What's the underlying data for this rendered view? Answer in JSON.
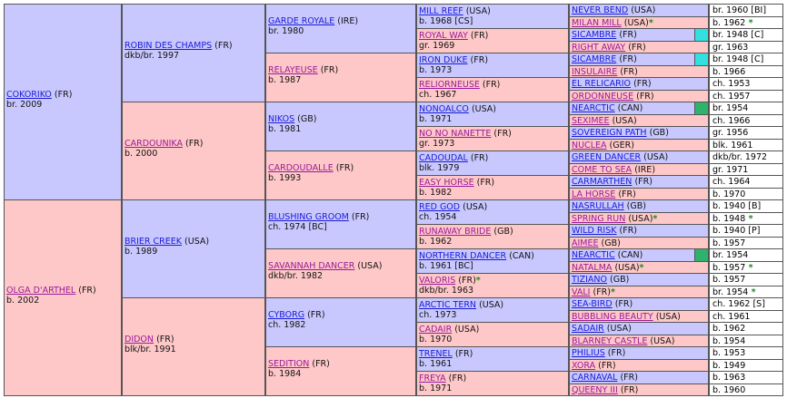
{
  "gen1": [
    {
      "name": "COKORIKO",
      "country": "(FR)",
      "info": "br. 2009",
      "sex": "m"
    },
    {
      "name": "OLGA D'ARTHEL",
      "country": "(FR)",
      "info": "b. 2002",
      "sex": "f"
    }
  ],
  "gen2": [
    {
      "name": "ROBIN DES CHAMPS",
      "country": "(FR)",
      "info": "dkb/br. 1997",
      "sex": "m"
    },
    {
      "name": "CARDOUNIKA",
      "country": "(FR)",
      "info": "b. 2000",
      "sex": "f"
    },
    {
      "name": "BRIER CREEK",
      "country": "(USA)",
      "info": "b. 1989",
      "sex": "m"
    },
    {
      "name": "DIDON",
      "country": "(FR)",
      "info": "blk/br. 1991",
      "sex": "f"
    }
  ],
  "gen3": [
    {
      "name": "GARDE ROYALE",
      "country": "(IRE)",
      "info": "br. 1980",
      "sex": "m"
    },
    {
      "name": "RELAYEUSE",
      "country": "(FR)",
      "info": "b. 1987",
      "sex": "f"
    },
    {
      "name": "NIKOS",
      "country": "(GB)",
      "info": "b. 1981",
      "sex": "m"
    },
    {
      "name": "CARDOUDALLE",
      "country": "(FR)",
      "info": "b. 1993",
      "sex": "f"
    },
    {
      "name": "BLUSHING GROOM",
      "country": "(FR)",
      "info": "ch. 1974 [BC]",
      "sex": "m"
    },
    {
      "name": "SAVANNAH DANCER",
      "country": "(USA)",
      "info": "dkb/br. 1982",
      "sex": "f"
    },
    {
      "name": "CYBORG",
      "country": "(FR)",
      "info": "ch. 1982",
      "sex": "m"
    },
    {
      "name": "SEDITION",
      "country": "(FR)",
      "info": "b. 1984",
      "sex": "f"
    }
  ],
  "gen4": [
    {
      "name": "MILL REEF",
      "country": "(USA)",
      "info": "b. 1968 [CS]",
      "sex": "m"
    },
    {
      "name": "ROYAL WAY",
      "country": "(FR)",
      "info": "gr. 1969",
      "sex": "f"
    },
    {
      "name": "IRON DUKE",
      "country": "(FR)",
      "info": "b. 1973",
      "sex": "m"
    },
    {
      "name": "RELIORNEUSE",
      "country": "(FR)",
      "info": "ch. 1967",
      "sex": "f"
    },
    {
      "name": "NONOALCO",
      "country": "(USA)",
      "info": "b. 1971",
      "sex": "m"
    },
    {
      "name": "NO NO NANETTE",
      "country": "(FR)",
      "info": "gr. 1973",
      "sex": "f"
    },
    {
      "name": "CADOUDAL",
      "country": "(FR)",
      "info": "blk. 1979",
      "sex": "m"
    },
    {
      "name": "EASY HORSE",
      "country": "(FR)",
      "info": "b. 1982",
      "sex": "f"
    },
    {
      "name": "RED GOD",
      "country": "(USA)",
      "info": "ch. 1954",
      "sex": "m"
    },
    {
      "name": "RUNAWAY BRIDE",
      "country": "(GB)",
      "info": "b. 1962",
      "sex": "f"
    },
    {
      "name": "NORTHERN DANCER",
      "country": "(CAN)",
      "info": "b. 1961 [BC]",
      "sex": "m"
    },
    {
      "name": "VALORIS",
      "country": "(FR)",
      "info": "dkb/br. 1963",
      "sex": "f",
      "star": true
    },
    {
      "name": "ARCTIC TERN",
      "country": "(USA)",
      "info": "ch. 1973",
      "sex": "m"
    },
    {
      "name": "CADAIR",
      "country": "(USA)",
      "info": "b. 1970",
      "sex": "f"
    },
    {
      "name": "TRENEL",
      "country": "(FR)",
      "info": "b. 1961",
      "sex": "m"
    },
    {
      "name": "FREYA",
      "country": "(FR)",
      "info": "b. 1971",
      "sex": "f"
    }
  ],
  "gen5": [
    {
      "name": "NEVER BEND",
      "country": "(USA)",
      "info": "br. 1960 [BI]",
      "sex": "m"
    },
    {
      "name": "MILAN MILL",
      "country": "(USA)",
      "info": "b. 1962",
      "sex": "f",
      "star": true
    },
    {
      "name": "SICAMBRE",
      "country": "(FR)",
      "info": "br. 1948 [C]",
      "sex": "m",
      "swatch": "#33e0e0"
    },
    {
      "name": "RIGHT AWAY",
      "country": "(FR)",
      "info": "gr. 1963",
      "sex": "f"
    },
    {
      "name": "SICAMBRE",
      "country": "(FR)",
      "info": "br. 1948 [C]",
      "sex": "m",
      "swatch": "#33e0e0"
    },
    {
      "name": "INSULAIRE",
      "country": "(FR)",
      "info": "b. 1966",
      "sex": "f"
    },
    {
      "name": "EL RELICARIO",
      "country": "(FR)",
      "info": "ch. 1953",
      "sex": "m"
    },
    {
      "name": "ORDONNEUSE",
      "country": "(FR)",
      "info": "ch. 1957",
      "sex": "f"
    },
    {
      "name": "NEARCTIC",
      "country": "(CAN)",
      "info": "br. 1954",
      "sex": "m",
      "swatch": "#2db36b"
    },
    {
      "name": "SEXIMEE",
      "country": "(USA)",
      "info": "ch. 1966",
      "sex": "f"
    },
    {
      "name": "SOVEREIGN PATH",
      "country": "(GB)",
      "info": "gr. 1956",
      "sex": "m"
    },
    {
      "name": "NUCLEA",
      "country": "(GER)",
      "info": "blk. 1961",
      "sex": "f"
    },
    {
      "name": "GREEN DANCER",
      "country": "(USA)",
      "info": "dkb/br. 1972",
      "sex": "m"
    },
    {
      "name": "COME TO SEA",
      "country": "(IRE)",
      "info": "gr. 1971",
      "sex": "f"
    },
    {
      "name": "CARMARTHEN",
      "country": "(FR)",
      "info": "ch. 1964",
      "sex": "m"
    },
    {
      "name": "LA HORSE",
      "country": "(FR)",
      "info": "b. 1970",
      "sex": "f"
    },
    {
      "name": "NASRULLAH",
      "country": "(GB)",
      "info": "b. 1940 [B]",
      "sex": "m"
    },
    {
      "name": "SPRING RUN",
      "country": "(USA)",
      "info": "b. 1948",
      "sex": "f",
      "star": true
    },
    {
      "name": "WILD RISK",
      "country": "(FR)",
      "info": "b. 1940 [P]",
      "sex": "m"
    },
    {
      "name": "AIMEE",
      "country": "(GB)",
      "info": "b. 1957",
      "sex": "f"
    },
    {
      "name": "NEARCTIC",
      "country": "(CAN)",
      "info": "br. 1954",
      "sex": "m",
      "swatch": "#2db36b"
    },
    {
      "name": "NATALMA",
      "country": "(USA)",
      "info": "b. 1957",
      "sex": "f",
      "star": true
    },
    {
      "name": "TIZIANO",
      "country": "(GB)",
      "info": "b. 1957",
      "sex": "m"
    },
    {
      "name": "VALI",
      "country": "(FR)",
      "info": "br. 1954",
      "sex": "f",
      "star": true
    },
    {
      "name": "SEA-BIRD",
      "country": "(FR)",
      "info": "ch. 1962 [S]",
      "sex": "m"
    },
    {
      "name": "BUBBLING BEAUTY",
      "country": "(USA)",
      "info": "ch. 1961",
      "sex": "f"
    },
    {
      "name": "SADAIR",
      "country": "(USA)",
      "info": "b. 1962",
      "sex": "m"
    },
    {
      "name": "BLARNEY CASTLE",
      "country": "(USA)",
      "info": "b. 1954",
      "sex": "f"
    },
    {
      "name": "PHILIUS",
      "country": "(FR)",
      "info": "b. 1953",
      "sex": "m"
    },
    {
      "name": "XORA",
      "country": "(FR)",
      "info": "b. 1949",
      "sex": "f"
    },
    {
      "name": "CARNAVAL",
      "country": "(FR)",
      "info": "b. 1963",
      "sex": "m"
    },
    {
      "name": "QUEENY III",
      "country": "(FR)",
      "info": "b. 1960",
      "sex": "f"
    }
  ],
  "star_glyph": "*",
  "colors": {
    "male": "#c8c8ff",
    "female": "#ffc8c8",
    "link": "#1a1ad8",
    "star": "#1a8a1a"
  }
}
